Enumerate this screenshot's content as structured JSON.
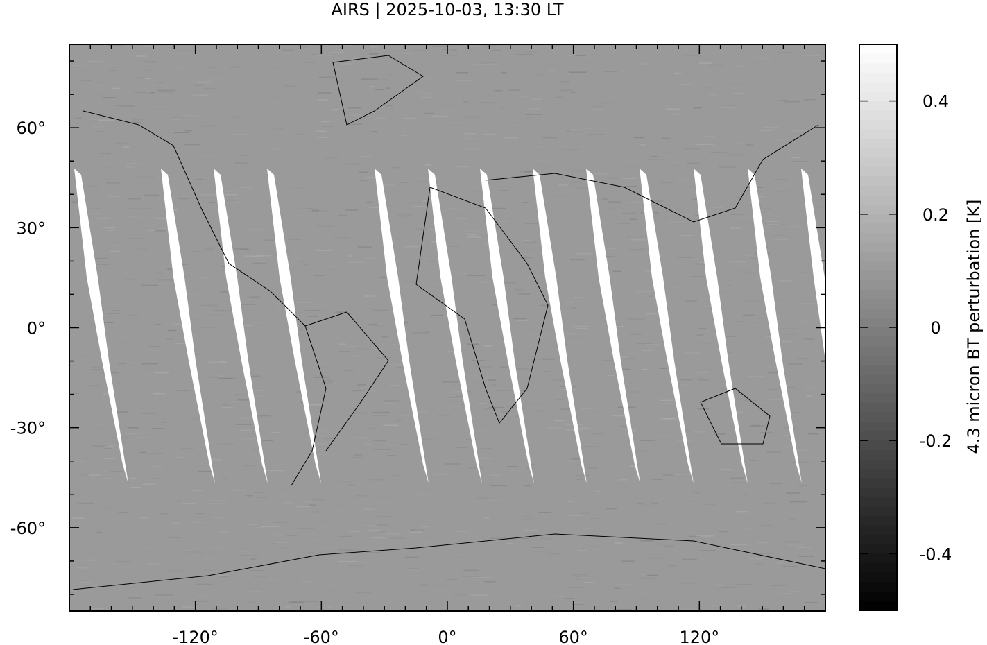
{
  "chart_data": {
    "type": "heatmap",
    "title": "AIRS | 2025-10-03, 13:30 LT",
    "projection": "equirectangular",
    "xlim": [
      -180,
      180
    ],
    "ylim": [
      -85,
      85
    ],
    "x_ticks": [
      -120,
      -60,
      0,
      60,
      120
    ],
    "x_tick_labels": [
      "-120°",
      "-60°",
      "0°",
      "60°",
      "120°"
    ],
    "y_ticks": [
      60,
      30,
      0,
      -30,
      -60
    ],
    "y_tick_labels": [
      "60°",
      "30°",
      "0°",
      "-30°",
      "-60°"
    ],
    "colorbar": {
      "label": "4.3 micron BT perturbation [K]",
      "range": [
        -0.5,
        0.5
      ],
      "ticks": [
        0.4,
        0.2,
        0,
        -0.2,
        -0.4
      ],
      "tick_labels": [
        "0.4",
        "0.2",
        "0",
        "-0.2",
        "-0.4"
      ],
      "colormap": "grayscale",
      "low_color": "#000000",
      "high_color": "#ffffff"
    },
    "background_color": "#9a9a9a",
    "gap_color": "#ffffff",
    "coastlines": true
  }
}
